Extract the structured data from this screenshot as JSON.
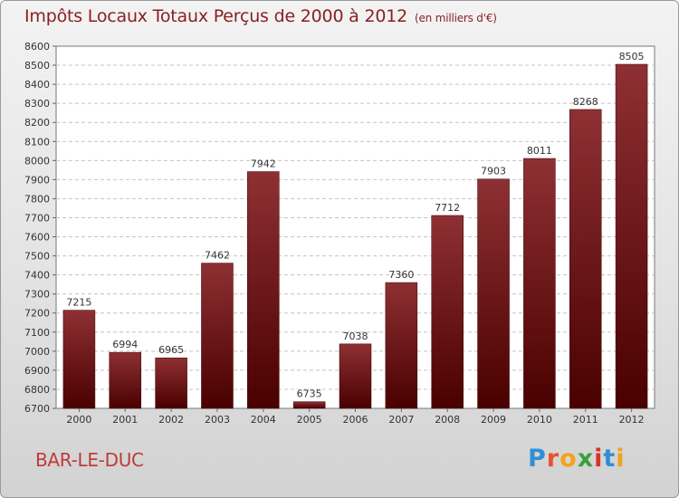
{
  "header": {
    "title": "Impôts Locaux Totaux Perçus de 2000 à 2012",
    "unit": "(en milliers d'€)"
  },
  "footer": {
    "city": "BAR-LE-DUC",
    "logo": "Proxiti"
  },
  "colors": {
    "bar_top": "#8e3034",
    "bar_bottom": "#4a0000",
    "title": "#8a1e1e",
    "city": "#c03a3a"
  },
  "chart_data": {
    "type": "bar",
    "title": "Impôts Locaux Totaux Perçus de 2000 à 2012",
    "subtitle": "(en milliers d'€)",
    "xlabel": "",
    "ylabel": "",
    "categories": [
      "2000",
      "2001",
      "2002",
      "2003",
      "2004",
      "2005",
      "2006",
      "2007",
      "2008",
      "2009",
      "2010",
      "2011",
      "2012"
    ],
    "values": [
      7215,
      6994,
      6965,
      7462,
      7942,
      6735,
      7038,
      7360,
      7712,
      7903,
      8011,
      8268,
      8505
    ],
    "ylim": [
      6700,
      8600
    ],
    "ytick_step": 100,
    "grid": true,
    "data_labels": true
  }
}
